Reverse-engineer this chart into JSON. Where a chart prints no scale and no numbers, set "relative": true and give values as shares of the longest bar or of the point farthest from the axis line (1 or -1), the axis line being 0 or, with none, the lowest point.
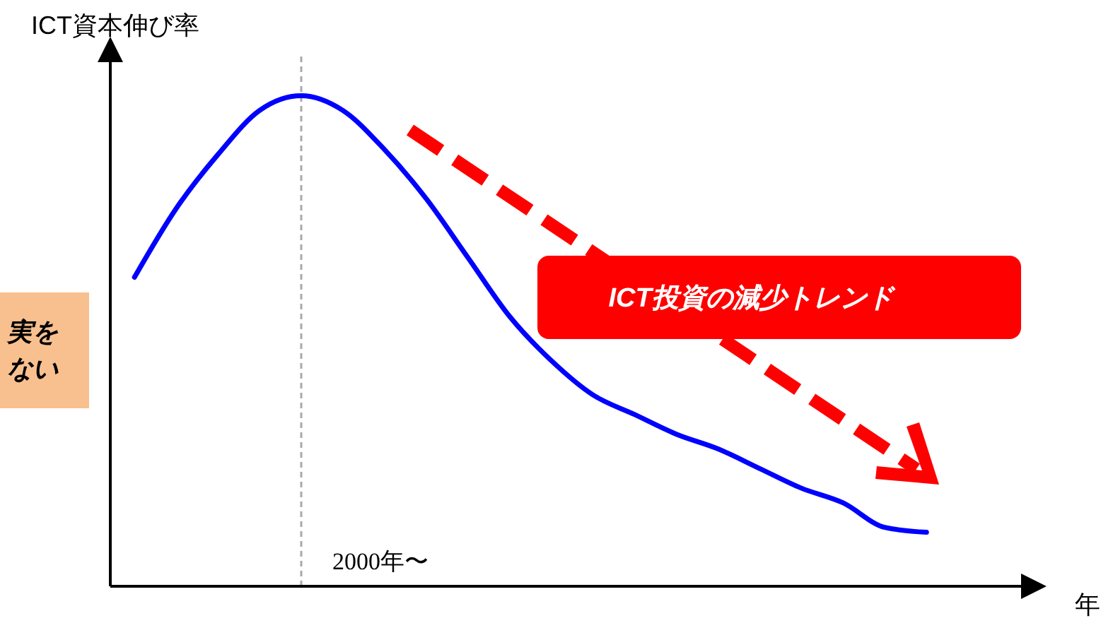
{
  "chart_data": {
    "type": "line",
    "relative": true,
    "ylabel": "ICT資本伸び率",
    "categories": [
      null,
      null,
      null,
      null,
      null,
      null,
      null,
      null,
      null,
      null,
      null,
      null,
      null,
      null,
      null,
      null,
      null,
      null,
      null,
      null
    ],
    "series": [
      {
        "color": "#0000ff",
        "values": [
          0.63,
          0.77,
          0.88,
          0.97,
          1,
          0.97,
          0.89,
          0.79,
          0.67,
          0.55,
          0.46,
          0.39,
          0.35,
          0.31,
          0.28,
          0.24,
          0.2,
          0.17,
          0.12,
          0.11
        ]
      }
    ],
    "marker": "none",
    "line_style": "solid",
    "annotations": [
      "ICT投資の減少トレンド",
      "実を",
      "ない",
      "年",
      "2000年〜"
    ]
  }
}
